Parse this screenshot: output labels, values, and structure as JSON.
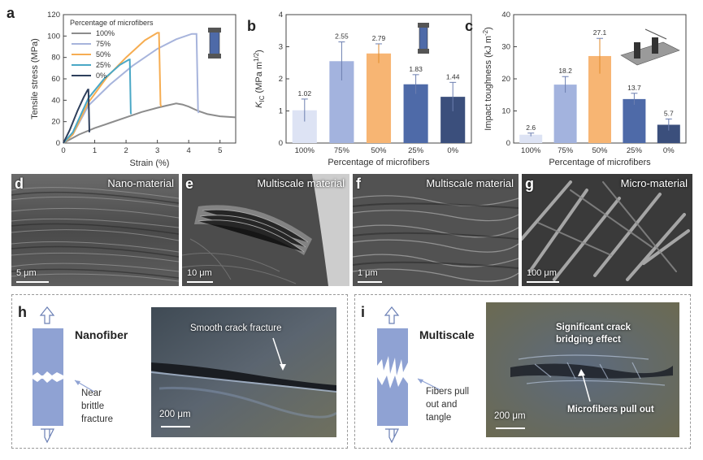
{
  "panels": {
    "a": {
      "letter": "a"
    },
    "b": {
      "letter": "b"
    },
    "c": {
      "letter": "c"
    }
  },
  "chart_data": [
    {
      "type": "line",
      "panel": "a",
      "xlabel": "Strain (%)",
      "ylabel": "Tensile stress (MPa)",
      "xlim": [
        0,
        5.5
      ],
      "ylim": [
        0,
        120
      ],
      "xticks": [
        "0",
        "1",
        "2",
        "3",
        "4",
        "5"
      ],
      "yticks": [
        "0",
        "20",
        "40",
        "60",
        "80",
        "100",
        "120"
      ],
      "legend_title": "Percentage of microfibers",
      "series": [
        {
          "name": "100%",
          "color": "#8c8c8c",
          "points": [
            [
              0,
              0
            ],
            [
              0.5,
              8
            ],
            [
              1,
              14
            ],
            [
              1.5,
              19
            ],
            [
              2,
              24
            ],
            [
              2.5,
              29
            ],
            [
              3,
              33
            ],
            [
              3.3,
              35
            ],
            [
              3.6,
              37
            ],
            [
              3.8,
              36
            ],
            [
              4.0,
              34
            ],
            [
              4.3,
              30
            ],
            [
              4.6,
              27
            ],
            [
              5.0,
              25
            ],
            [
              5.5,
              24
            ]
          ]
        },
        {
          "name": "75%",
          "color": "#a7b4dc",
          "points": [
            [
              0,
              0
            ],
            [
              0.3,
              8
            ],
            [
              0.8,
              35
            ],
            [
              1.5,
              55
            ],
            [
              2.2,
              72
            ],
            [
              3,
              88
            ],
            [
              3.6,
              97
            ],
            [
              4.1,
              102
            ],
            [
              4.25,
              102
            ],
            [
              4.3,
              30
            ],
            [
              4.32,
              28
            ]
          ]
        },
        {
          "name": "50%",
          "color": "#f6ad52",
          "points": [
            [
              0,
              0
            ],
            [
              0.3,
              8
            ],
            [
              0.8,
              38
            ],
            [
              1.4,
              62
            ],
            [
              2,
              80
            ],
            [
              2.6,
              96
            ],
            [
              3.0,
              103
            ],
            [
              3.05,
              103
            ],
            [
              3.1,
              36
            ],
            [
              3.12,
              34
            ]
          ]
        },
        {
          "name": "25%",
          "color": "#4aa8c6",
          "points": [
            [
              0,
              0
            ],
            [
              0.3,
              10
            ],
            [
              0.8,
              42
            ],
            [
              1.3,
              60
            ],
            [
              1.8,
              73
            ],
            [
              2.1,
              78
            ],
            [
              2.12,
              78
            ],
            [
              2.15,
              28
            ],
            [
              2.17,
              27
            ]
          ]
        },
        {
          "name": "0%",
          "color": "#2e3f5c",
          "points": [
            [
              0,
              0
            ],
            [
              0.2,
              12
            ],
            [
              0.45,
              30
            ],
            [
              0.65,
              43
            ],
            [
              0.78,
              50
            ],
            [
              0.8,
              50
            ],
            [
              0.83,
              10
            ]
          ]
        }
      ]
    },
    {
      "type": "bar",
      "panel": "b",
      "ylabel": "K_IC (MPa m^1/2)",
      "ylabel_main": "K",
      "ylabel_sub": "IC",
      "ylabel_unit": "(MPa m",
      "ylabel_sup": "1/2",
      "ylabel_close": ")",
      "xlabel": "Percentage of microfibers",
      "ylim": [
        0,
        4
      ],
      "yticks": [
        "0",
        "1",
        "2",
        "3",
        "4"
      ],
      "categories": [
        "100%",
        "75%",
        "50%",
        "25%",
        "0%"
      ],
      "values": [
        1.02,
        2.55,
        2.79,
        1.83,
        1.44
      ],
      "labels": [
        "1.02",
        "2.55",
        "2.79",
        "1.83",
        "1.44"
      ],
      "errors": [
        0.35,
        0.6,
        0.3,
        0.3,
        0.45
      ],
      "colors": [
        "#dde3f4",
        "#a3b3de",
        "#f7b573",
        "#4e6aa8",
        "#3b4f7c"
      ]
    },
    {
      "type": "bar",
      "panel": "c",
      "ylabel": "Impact toughness (kJ m^-2)",
      "ylabel_main": "Impact toughness (kJ m",
      "ylabel_sup": "-2",
      "ylabel_close": ")",
      "xlabel": "Percentage of microfibers",
      "ylim": [
        0,
        40
      ],
      "yticks": [
        "0",
        "10",
        "20",
        "30",
        "40"
      ],
      "categories": [
        "100%",
        "75%",
        "50%",
        "25%",
        "0%"
      ],
      "values": [
        2.6,
        18.2,
        27.1,
        13.7,
        5.7
      ],
      "labels": [
        "2.6",
        "18.2",
        "27.1",
        "13.7",
        "5.7"
      ],
      "errors": [
        0.5,
        2.5,
        5.5,
        1.8,
        1.8
      ],
      "colors": [
        "#dde3f4",
        "#a3b3de",
        "#f7b573",
        "#4e6aa8",
        "#3b4f7c"
      ]
    }
  ],
  "sem": [
    {
      "letter": "d",
      "title": "Nano-material",
      "scale": "5 μm"
    },
    {
      "letter": "e",
      "title": "Multiscale material",
      "scale": "10 μm"
    },
    {
      "letter": "f",
      "title": "Multiscale material",
      "scale": "1 μm"
    },
    {
      "letter": "g",
      "title": "Micro-material",
      "scale": "100 μm"
    }
  ],
  "panel_h": {
    "letter": "h",
    "name": "Nanofiber",
    "note_line1": "Near",
    "note_line2": "brittle",
    "note_line3": "fracture",
    "photo_label": "Smooth crack fracture",
    "scale": "200 μm"
  },
  "panel_i": {
    "letter": "i",
    "name": "Multiscale",
    "note_line1": "Fibers pull",
    "note_line2": "out and",
    "note_line3": "tangle",
    "photo_label_line1": "Significant crack",
    "photo_label_line2": "bridging effect",
    "photo_label2": "Microfibers pull out",
    "scale": "200 μm"
  }
}
